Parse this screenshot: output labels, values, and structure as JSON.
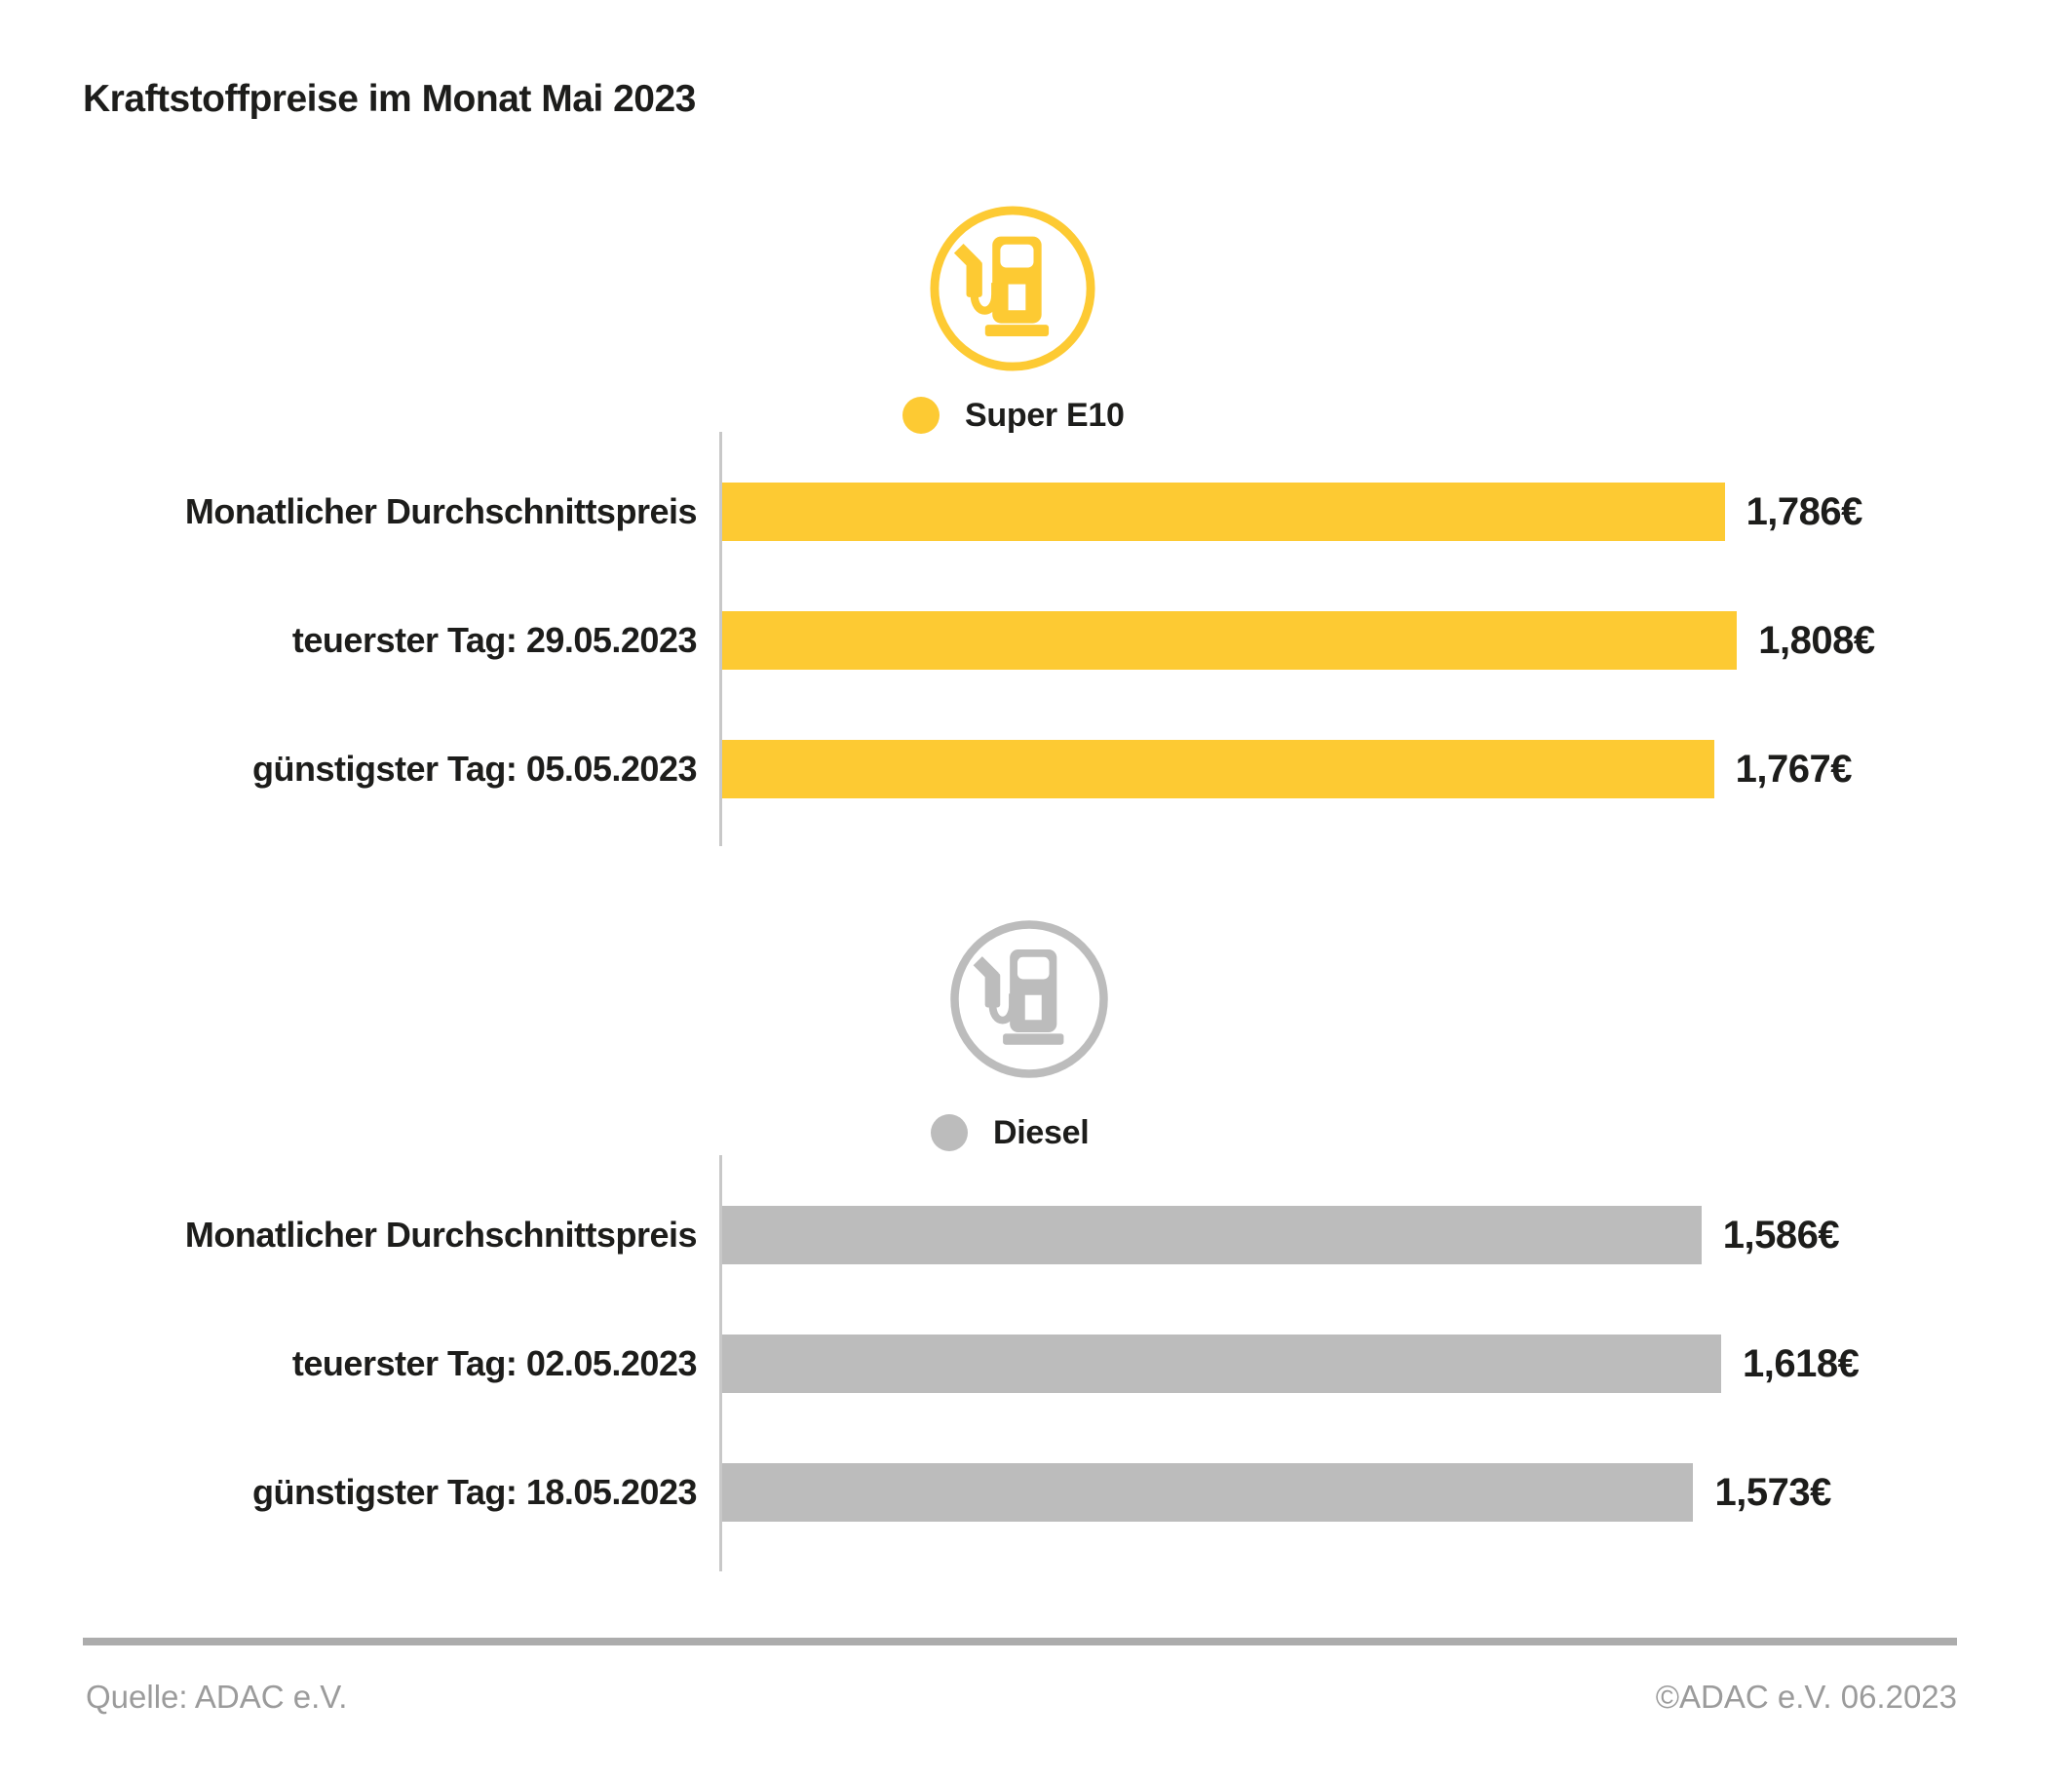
{
  "title": "Kraftstoffpreise im Monat Mai 2023",
  "colors": {
    "super": "#FDCA33",
    "diesel": "#BCBCBC",
    "axis": "#C8C8C8",
    "ink": "#1D1D1B",
    "muted": "#9B9B9B",
    "rule": "#ACACAC"
  },
  "chart_data": [
    {
      "type": "bar",
      "orientation": "horizontal",
      "title": "Super E10",
      "legend_label": "Super E10",
      "color": "#FDCA33",
      "icon": "fuel-pump-icon",
      "unit": "EUR/Liter",
      "categories": [
        "Monatlicher Durchschnittspreis",
        "teuerster Tag: 29.05.2023",
        "günstigster Tag: 05.05.2023"
      ],
      "values": [
        1.786,
        1.808,
        1.767
      ],
      "value_labels": [
        "1,786€",
        "1,808€",
        "1,767€"
      ],
      "xlim": [
        0,
        2.2
      ],
      "grid": false,
      "legend_position": "top"
    },
    {
      "type": "bar",
      "orientation": "horizontal",
      "title": "Diesel",
      "legend_label": "Diesel",
      "color": "#BCBCBC",
      "icon": "fuel-pump-icon",
      "unit": "EUR/Liter",
      "categories": [
        "Monatlicher Durchschnittspreis",
        "teuerster Tag: 02.05.2023",
        "günstigster Tag: 18.05.2023"
      ],
      "values": [
        1.586,
        1.618,
        1.573
      ],
      "value_labels": [
        "1,586€",
        "1,618€",
        "1,573€"
      ],
      "xlim": [
        0,
        2.0
      ],
      "grid": false,
      "legend_position": "top"
    }
  ],
  "footer": {
    "source": "Quelle: ADAC e.V.",
    "copyright": "©ADAC e.V. 06.2023"
  }
}
